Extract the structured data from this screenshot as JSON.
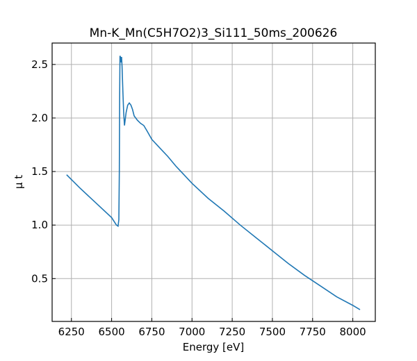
{
  "chart_data": {
    "type": "line",
    "title": "Mn-K_Mn(C5H7O2)3_Si111_50ms_200626",
    "xlabel": "Energy [eV]",
    "ylabel": "μ t",
    "xlim": [
      6130,
      8140
    ],
    "ylim": [
      0.1,
      2.7
    ],
    "xticks": [
      6250,
      6500,
      6750,
      7000,
      7250,
      7500,
      7750,
      8000
    ],
    "yticks": [
      0.5,
      1.0,
      1.5,
      2.0,
      2.5
    ],
    "xtick_labels": [
      "6250",
      "6500",
      "6750",
      "7000",
      "7250",
      "7500",
      "7750",
      "8000"
    ],
    "ytick_labels": [
      "0.5",
      "1.0",
      "1.5",
      "2.0",
      "2.5"
    ],
    "grid": true,
    "line_color": "#1f77b4",
    "series": [
      {
        "x": [
          6220,
          6300,
          6400,
          6500,
          6530,
          6540,
          6545,
          6548,
          6550,
          6552,
          6555,
          6558,
          6562,
          6565,
          6570,
          6575,
          6580,
          6590,
          6600,
          6610,
          6620,
          6630,
          6640,
          6660,
          6680,
          6700,
          6720,
          6750,
          6800,
          6850,
          6900,
          6950,
          7000,
          7100,
          7200,
          7300,
          7400,
          7500,
          7600,
          7700,
          7800,
          7900,
          8000,
          8045
        ],
        "y": [
          1.47,
          1.35,
          1.21,
          1.07,
          1.0,
          0.99,
          1.05,
          1.5,
          2.2,
          2.58,
          2.57,
          2.52,
          2.57,
          2.48,
          2.25,
          2.05,
          1.93,
          2.05,
          2.12,
          2.14,
          2.12,
          2.08,
          2.02,
          1.98,
          1.95,
          1.93,
          1.88,
          1.8,
          1.72,
          1.64,
          1.55,
          1.47,
          1.39,
          1.25,
          1.13,
          1.0,
          0.88,
          0.76,
          0.64,
          0.53,
          0.43,
          0.33,
          0.25,
          0.21
        ]
      }
    ]
  }
}
